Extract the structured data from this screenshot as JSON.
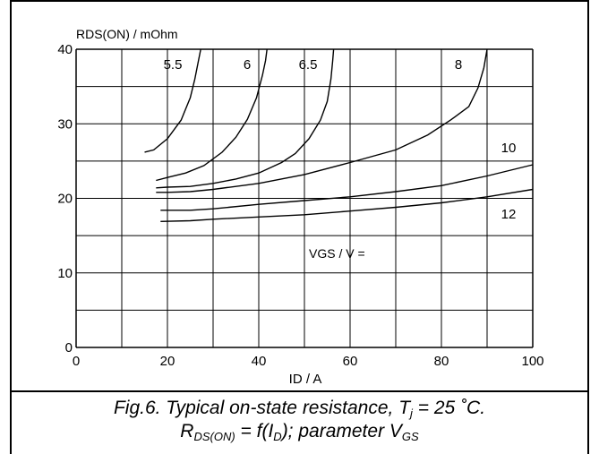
{
  "chart_data": {
    "type": "line",
    "ylabel": "RDS(ON) / mOhm",
    "xlabel": "ID / A",
    "xlim": [
      0,
      100
    ],
    "ylim": [
      0,
      40
    ],
    "xticks": [
      0,
      20,
      40,
      60,
      80,
      100
    ],
    "yticks": [
      0,
      10,
      20,
      30,
      40
    ],
    "grid": true,
    "param_label": "VGS / V =",
    "series": [
      {
        "name": "5.5",
        "points": [
          [
            15,
            26.2
          ],
          [
            17,
            26.5
          ],
          [
            20,
            28
          ],
          [
            23,
            30.5
          ],
          [
            25,
            33.5
          ],
          [
            26,
            36
          ],
          [
            26.8,
            38.5
          ],
          [
            27.3,
            40
          ]
        ]
      },
      {
        "name": "6",
        "points": [
          [
            17.5,
            22.4
          ],
          [
            20,
            22.8
          ],
          [
            24,
            23.4
          ],
          [
            28,
            24.4
          ],
          [
            32,
            26.2
          ],
          [
            35,
            28.2
          ],
          [
            37.5,
            30.6
          ],
          [
            39.5,
            33.5
          ],
          [
            40.8,
            36.5
          ],
          [
            41.5,
            38.5
          ],
          [
            41.8,
            40
          ]
        ]
      },
      {
        "name": "6.5",
        "points": [
          [
            17.5,
            21.4
          ],
          [
            20,
            21.5
          ],
          [
            25,
            21.6
          ],
          [
            30,
            22
          ],
          [
            35,
            22.6
          ],
          [
            40,
            23.4
          ],
          [
            45,
            24.8
          ],
          [
            48,
            26
          ],
          [
            51,
            28
          ],
          [
            53.5,
            30.5
          ],
          [
            55,
            33
          ],
          [
            55.8,
            36
          ],
          [
            56.2,
            38.5
          ],
          [
            56.4,
            40
          ]
        ]
      },
      {
        "name": "8",
        "points": [
          [
            17.5,
            20.8
          ],
          [
            20,
            20.8
          ],
          [
            25,
            20.9
          ],
          [
            30,
            21.2
          ],
          [
            40,
            22
          ],
          [
            50,
            23.2
          ],
          [
            60,
            24.8
          ],
          [
            70,
            26.5
          ],
          [
            77,
            28.5
          ],
          [
            82,
            30.5
          ],
          [
            86,
            32.3
          ],
          [
            88,
            34.8
          ],
          [
            89.3,
            37.5
          ],
          [
            90,
            40
          ]
        ]
      },
      {
        "name": "10",
        "points": [
          [
            18.5,
            18.4
          ],
          [
            25,
            18.4
          ],
          [
            30,
            18.6
          ],
          [
            40,
            19.2
          ],
          [
            50,
            19.7
          ],
          [
            60,
            20.2
          ],
          [
            70,
            20.9
          ],
          [
            80,
            21.7
          ],
          [
            90,
            23
          ],
          [
            100,
            24.5
          ]
        ]
      },
      {
        "name": "12",
        "points": [
          [
            18.5,
            16.9
          ],
          [
            25,
            17
          ],
          [
            30,
            17.2
          ],
          [
            40,
            17.5
          ],
          [
            50,
            17.8
          ],
          [
            60,
            18.3
          ],
          [
            70,
            18.8
          ],
          [
            80,
            19.4
          ],
          [
            90,
            20.2
          ],
          [
            100,
            21.2
          ]
        ]
      }
    ]
  },
  "caption": {
    "line1_prefix": "Fig.6.   Typical on-state resistance, T",
    "line1_sub": "j",
    "line1_suffix": " = 25 ˚C.",
    "line2_a": "R",
    "line2_a_sub": "DS(ON)",
    "line2_b": " = f(I",
    "line2_b_sub": "D",
    "line2_c": "); parameter V",
    "line2_c_sub": "GS"
  }
}
